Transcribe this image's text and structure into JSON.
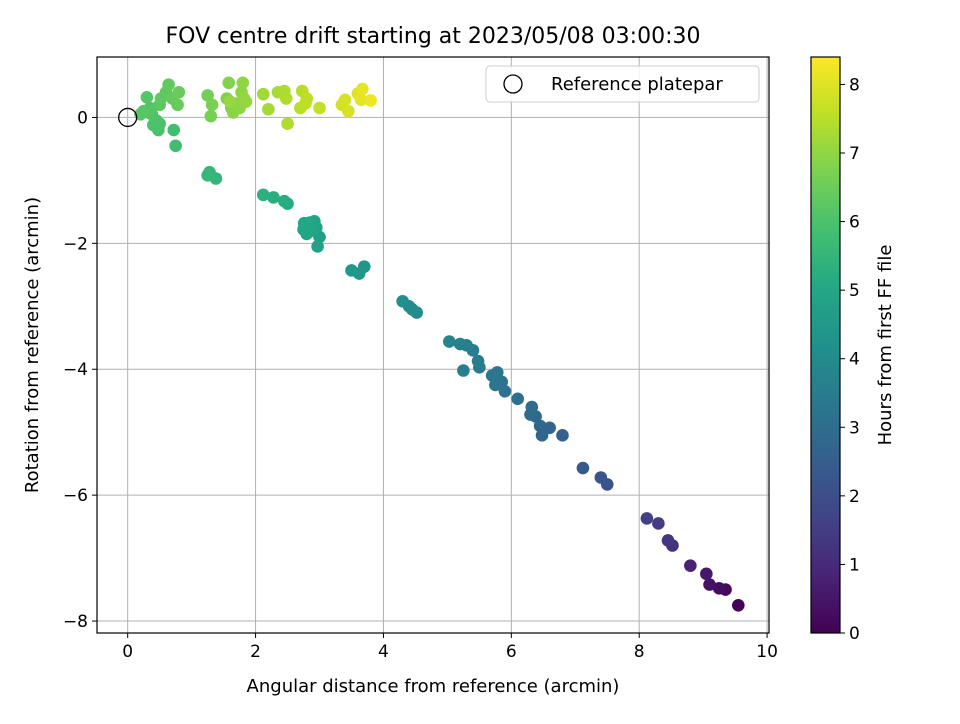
{
  "chart_data": {
    "type": "scatter",
    "title": "FOV centre drift starting at 2023/05/08 03:00:30",
    "xlabel": "Angular distance from reference (arcmin)",
    "ylabel": "Rotation from reference (arcmin)",
    "xlim": [
      -0.48,
      10.03
    ],
    "ylim": [
      -8.19,
      0.96
    ],
    "xticks": [
      0,
      2,
      4,
      6,
      8,
      10
    ],
    "yticks": [
      -8,
      -6,
      -4,
      -2,
      0
    ],
    "grid": true,
    "legend": {
      "placement": "top-right",
      "entries": [
        "Reference platepar"
      ]
    },
    "reference_point": {
      "x": 0,
      "y": 0
    },
    "colorbar": {
      "label": "Hours from first FF file",
      "ticks": [
        0,
        1,
        2,
        3,
        4,
        5,
        6,
        7,
        8
      ],
      "range": [
        0,
        8.4
      ],
      "colormap": "viridis"
    },
    "points": [
      [
        9.55,
        -7.75,
        0.05
      ],
      [
        9.35,
        -7.5,
        0.2
      ],
      [
        9.25,
        -7.48,
        0.3
      ],
      [
        9.1,
        -7.42,
        0.4
      ],
      [
        9.05,
        -7.25,
        0.55
      ],
      [
        8.8,
        -7.12,
        0.8
      ],
      [
        8.52,
        -6.8,
        1.2
      ],
      [
        8.45,
        -6.72,
        1.3
      ],
      [
        8.3,
        -6.45,
        1.5
      ],
      [
        8.12,
        -6.37,
        1.6
      ],
      [
        7.5,
        -5.83,
        2.1
      ],
      [
        7.4,
        -5.72,
        2.2
      ],
      [
        7.12,
        -5.57,
        2.35
      ],
      [
        6.8,
        -5.05,
        2.6
      ],
      [
        6.6,
        -4.93,
        2.7
      ],
      [
        6.48,
        -5.05,
        2.75
      ],
      [
        6.45,
        -4.9,
        2.8
      ],
      [
        6.38,
        -4.75,
        2.85
      ],
      [
        6.3,
        -4.72,
        2.9
      ],
      [
        6.32,
        -4.6,
        2.95
      ],
      [
        6.1,
        -4.47,
        3.05
      ],
      [
        5.9,
        -4.35,
        3.15
      ],
      [
        5.85,
        -4.2,
        3.2
      ],
      [
        5.75,
        -4.25,
        3.25
      ],
      [
        5.78,
        -4.05,
        3.3
      ],
      [
        5.7,
        -4.1,
        3.35
      ],
      [
        5.5,
        -3.97,
        3.45
      ],
      [
        5.48,
        -3.87,
        3.5
      ],
      [
        5.4,
        -3.7,
        3.55
      ],
      [
        5.3,
        -3.62,
        3.6
      ],
      [
        5.25,
        -4.02,
        3.62
      ],
      [
        5.2,
        -3.6,
        3.65
      ],
      [
        5.03,
        -3.56,
        3.75
      ],
      [
        4.52,
        -3.1,
        4.0
      ],
      [
        4.45,
        -3.05,
        4.05
      ],
      [
        4.4,
        -3.0,
        4.08
      ],
      [
        4.3,
        -2.92,
        4.15
      ],
      [
        3.7,
        -2.37,
        4.4
      ],
      [
        3.62,
        -2.48,
        4.45
      ],
      [
        3.5,
        -2.43,
        4.5
      ],
      [
        3.0,
        -1.9,
        4.75
      ],
      [
        2.97,
        -2.05,
        4.8
      ],
      [
        2.95,
        -1.75,
        4.85
      ],
      [
        2.92,
        -1.65,
        4.9
      ],
      [
        2.87,
        -1.8,
        4.92
      ],
      [
        2.85,
        -1.67,
        4.95
      ],
      [
        2.8,
        -1.85,
        4.97
      ],
      [
        2.76,
        -1.68,
        5.0
      ],
      [
        2.75,
        -1.78,
        5.02
      ],
      [
        2.5,
        -1.37,
        5.15
      ],
      [
        2.45,
        -1.33,
        5.18
      ],
      [
        2.28,
        -1.27,
        5.25
      ],
      [
        2.12,
        -1.23,
        5.3
      ],
      [
        1.38,
        -0.97,
        5.5
      ],
      [
        1.28,
        -0.87,
        5.55
      ],
      [
        1.25,
        -0.92,
        5.57
      ],
      [
        0.75,
        -0.45,
        5.8
      ],
      [
        0.72,
        -0.2,
        5.85
      ],
      [
        0.5,
        -0.1,
        5.95
      ],
      [
        0.48,
        -0.2,
        5.97
      ],
      [
        0.45,
        -0.05,
        6.0
      ],
      [
        0.4,
        -0.12,
        6.02
      ],
      [
        0.38,
        0.05,
        6.05
      ],
      [
        0.35,
        0.15,
        6.1
      ],
      [
        0.32,
        0.08,
        6.12
      ],
      [
        0.3,
        0.32,
        6.15
      ],
      [
        0.25,
        0.1,
        6.17
      ],
      [
        0.2,
        0.05,
        6.2
      ],
      [
        0.5,
        0.2,
        6.25
      ],
      [
        0.52,
        0.3,
        6.28
      ],
      [
        0.6,
        0.4,
        6.3
      ],
      [
        0.64,
        0.52,
        6.35
      ],
      [
        0.7,
        0.3,
        6.4
      ],
      [
        0.78,
        0.2,
        6.42
      ],
      [
        0.8,
        0.4,
        6.45
      ],
      [
        1.25,
        0.35,
        6.6
      ],
      [
        1.3,
        0.02,
        6.65
      ],
      [
        1.32,
        0.2,
        6.68
      ],
      [
        1.55,
        0.3,
        6.8
      ],
      [
        1.58,
        0.55,
        6.82
      ],
      [
        1.62,
        0.15,
        6.85
      ],
      [
        1.65,
        0.08,
        6.9
      ],
      [
        1.7,
        0.22,
        6.92
      ],
      [
        1.75,
        0.15,
        6.95
      ],
      [
        1.78,
        0.4,
        6.97
      ],
      [
        1.8,
        0.55,
        7.0
      ],
      [
        1.82,
        0.3,
        7.03
      ],
      [
        1.85,
        0.25,
        7.05
      ],
      [
        1.6,
        0.25,
        7.08
      ],
      [
        2.12,
        0.37,
        7.2
      ],
      [
        2.2,
        0.13,
        7.25
      ],
      [
        2.35,
        0.4,
        7.3
      ],
      [
        2.45,
        0.42,
        7.35
      ],
      [
        2.5,
        -0.1,
        7.38
      ],
      [
        2.48,
        0.3,
        7.4
      ],
      [
        2.7,
        0.15,
        7.5
      ],
      [
        2.73,
        0.42,
        7.52
      ],
      [
        2.8,
        0.3,
        7.55
      ],
      [
        2.78,
        0.22,
        7.57
      ],
      [
        3.0,
        0.15,
        7.65
      ],
      [
        3.35,
        0.2,
        7.85
      ],
      [
        3.4,
        0.28,
        7.88
      ],
      [
        3.45,
        0.1,
        7.9
      ],
      [
        3.6,
        0.38,
        8.0
      ],
      [
        3.65,
        0.28,
        8.05
      ],
      [
        3.67,
        0.45,
        8.1
      ],
      [
        3.8,
        0.27,
        8.2
      ]
    ]
  }
}
